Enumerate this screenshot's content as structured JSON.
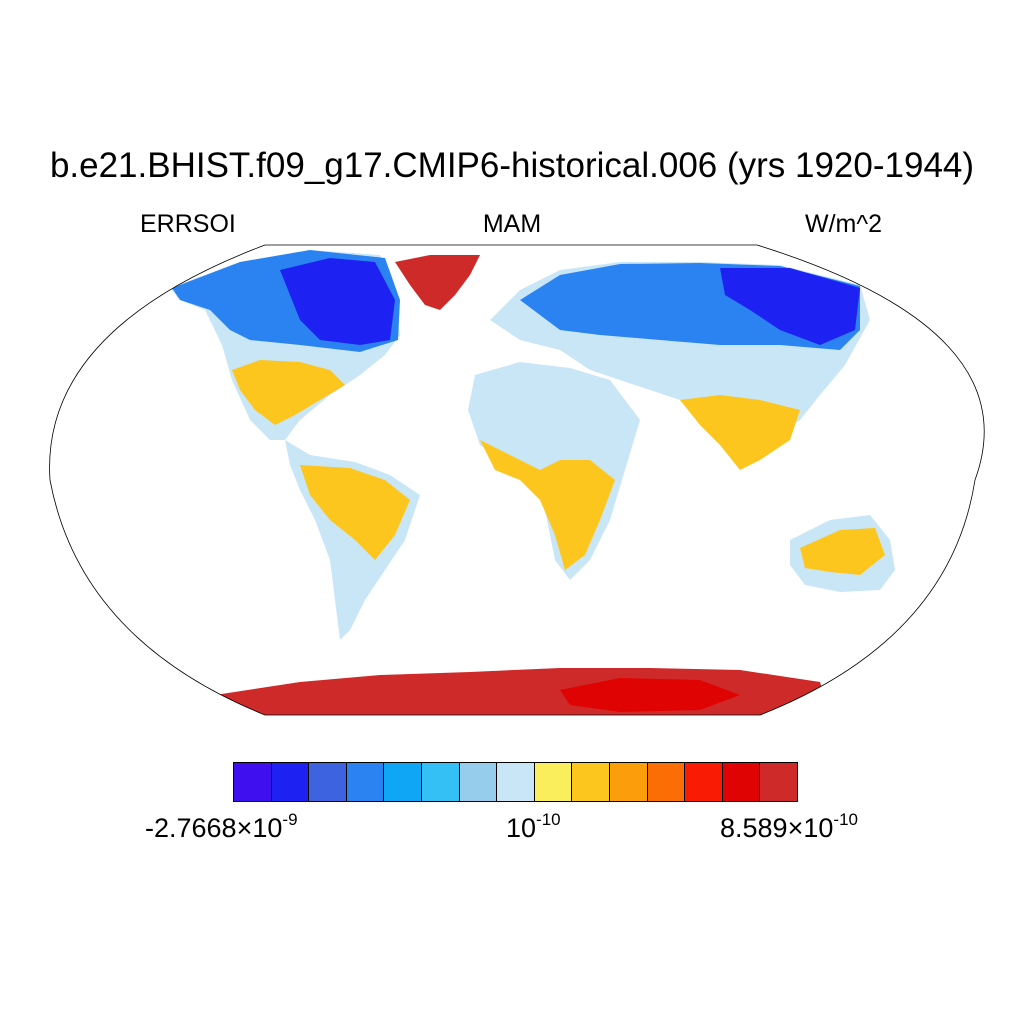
{
  "title": "b.e21.BHIST.f09_g17.CMIP6-historical.006 (yrs 1920-1944)",
  "left_label": "ERRSOI",
  "center_label": "MAM",
  "right_label": "W/m^2",
  "colorbar": {
    "colors": [
      "#3f0ff0",
      "#1d22f2",
      "#3d63e0",
      "#2b83f2",
      "#0ea6f5",
      "#35c0f5",
      "#96cdec",
      "#c9e6f7",
      "#fbee5d",
      "#fcc61e",
      "#fb9e0c",
      "#fb6e05",
      "#fa1b05",
      "#e00303",
      "#cf2a2a"
    ],
    "min": {
      "mantissa": "-2.7668",
      "times": "×",
      "base": "10",
      "exponent": "-9"
    },
    "mid": {
      "base": "10",
      "exponent": "-10"
    },
    "max": {
      "mantissa": "8.589",
      "times": "×",
      "base": "10",
      "exponent": "-10"
    }
  },
  "map": {
    "projection": "Robinson",
    "colors": {
      "ocean": "#ffffff",
      "outline": "#000000",
      "cold": "#1d22f2",
      "cool": "#2b83f2",
      "light": "#96cdec",
      "pale": "#c9e6f7",
      "yellow": "#fbee5d",
      "gold": "#fcc61e",
      "orange": "#fb9e0c",
      "red": "#cf2a2a",
      "deep_red": "#e00303"
    }
  }
}
